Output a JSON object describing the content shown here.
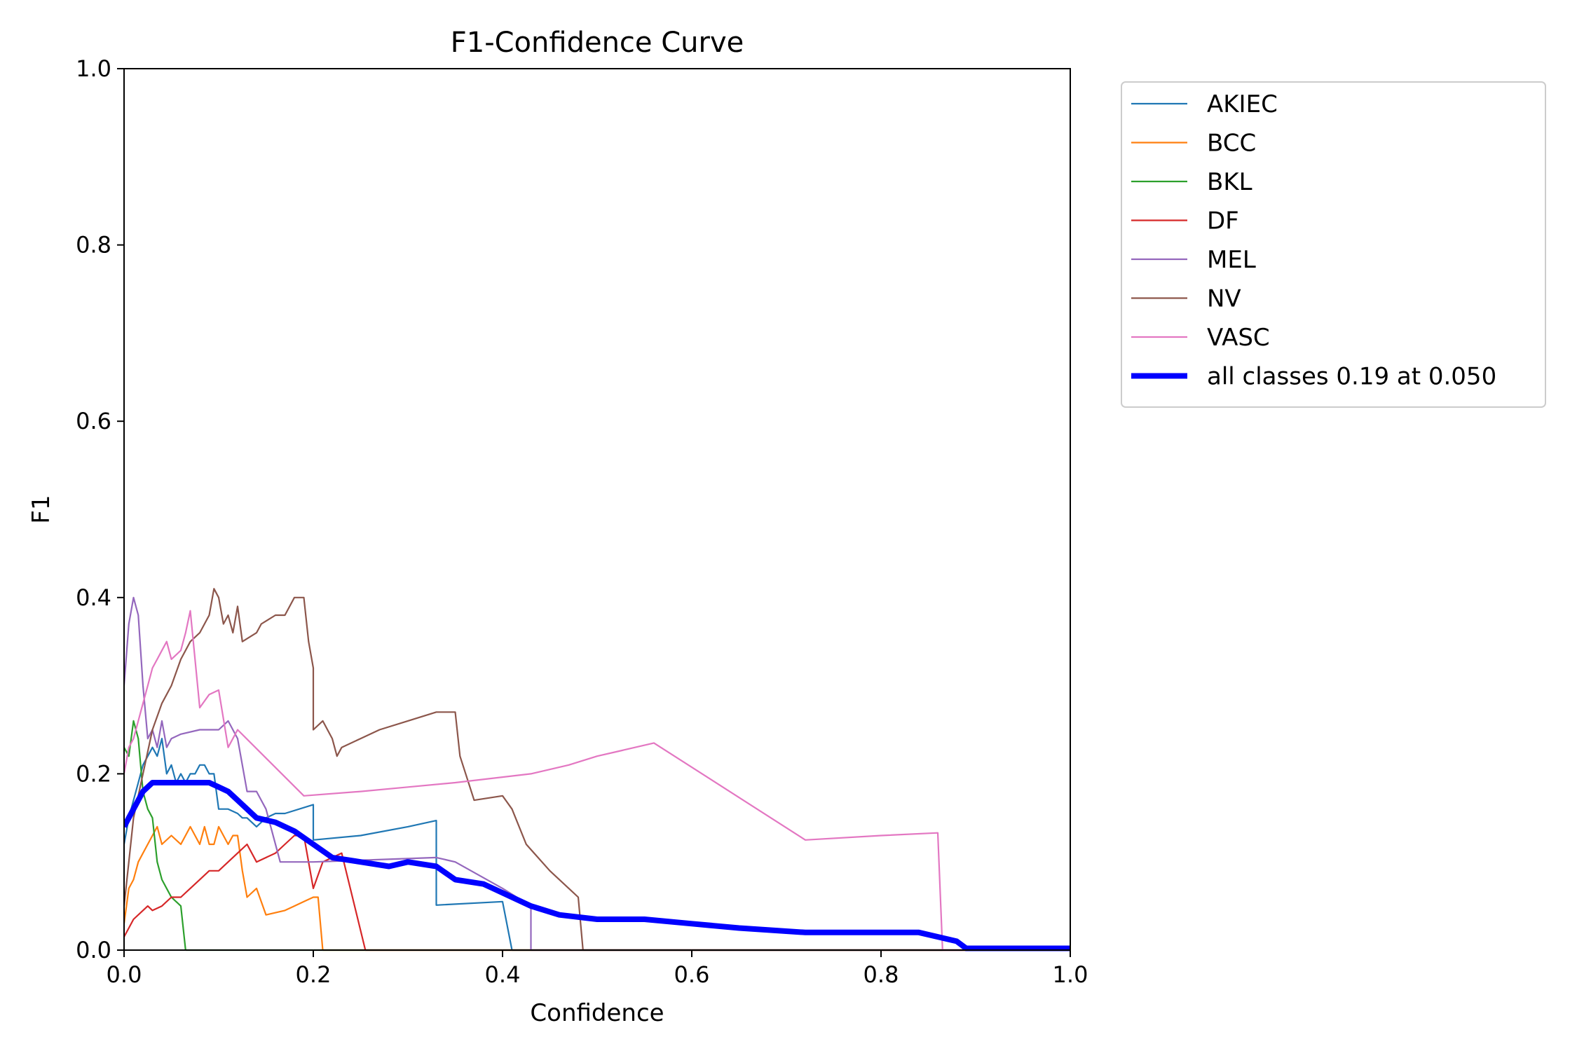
{
  "chart_data": {
    "type": "line",
    "title": "F1-Confidence Curve",
    "xlabel": "Confidence",
    "ylabel": "F1",
    "xlim": [
      0.0,
      1.0
    ],
    "ylim": [
      0.0,
      1.0
    ],
    "xticks": [
      "0.0",
      "0.2",
      "0.4",
      "0.6",
      "0.8",
      "1.0"
    ],
    "yticks": [
      "0.0",
      "0.2",
      "0.4",
      "0.6",
      "0.8",
      "1.0"
    ],
    "grid": false,
    "legend_position": "outside-top-right",
    "series": [
      {
        "name": "AKIEC",
        "color": "#1f77b4",
        "points": [
          [
            0.0,
            0.12
          ],
          [
            0.005,
            0.15
          ],
          [
            0.01,
            0.17
          ],
          [
            0.015,
            0.19
          ],
          [
            0.02,
            0.21
          ],
          [
            0.025,
            0.22
          ],
          [
            0.03,
            0.23
          ],
          [
            0.035,
            0.22
          ],
          [
            0.04,
            0.24
          ],
          [
            0.045,
            0.2
          ],
          [
            0.05,
            0.21
          ],
          [
            0.055,
            0.19
          ],
          [
            0.06,
            0.2
          ],
          [
            0.065,
            0.19
          ],
          [
            0.07,
            0.2
          ],
          [
            0.075,
            0.2
          ],
          [
            0.08,
            0.21
          ],
          [
            0.085,
            0.21
          ],
          [
            0.09,
            0.2
          ],
          [
            0.095,
            0.2
          ],
          [
            0.1,
            0.16
          ],
          [
            0.11,
            0.16
          ],
          [
            0.12,
            0.155
          ],
          [
            0.125,
            0.15
          ],
          [
            0.13,
            0.15
          ],
          [
            0.14,
            0.14
          ],
          [
            0.15,
            0.15
          ],
          [
            0.16,
            0.155
          ],
          [
            0.17,
            0.155
          ],
          [
            0.2,
            0.165
          ],
          [
            0.2,
            0.125
          ],
          [
            0.25,
            0.13
          ],
          [
            0.3,
            0.14
          ],
          [
            0.33,
            0.147
          ],
          [
            0.33,
            0.051
          ],
          [
            0.4,
            0.055
          ],
          [
            0.41,
            0.0
          ],
          [
            1.0,
            0.0
          ]
        ]
      },
      {
        "name": "BCC",
        "color": "#ff7f0e",
        "points": [
          [
            0.0,
            0.03
          ],
          [
            0.005,
            0.07
          ],
          [
            0.01,
            0.08
          ],
          [
            0.015,
            0.1
          ],
          [
            0.02,
            0.11
          ],
          [
            0.03,
            0.13
          ],
          [
            0.035,
            0.14
          ],
          [
            0.04,
            0.12
          ],
          [
            0.05,
            0.13
          ],
          [
            0.06,
            0.12
          ],
          [
            0.07,
            0.14
          ],
          [
            0.08,
            0.12
          ],
          [
            0.085,
            0.14
          ],
          [
            0.09,
            0.12
          ],
          [
            0.095,
            0.12
          ],
          [
            0.1,
            0.14
          ],
          [
            0.11,
            0.12
          ],
          [
            0.115,
            0.13
          ],
          [
            0.12,
            0.13
          ],
          [
            0.125,
            0.09
          ],
          [
            0.13,
            0.06
          ],
          [
            0.14,
            0.07
          ],
          [
            0.15,
            0.04
          ],
          [
            0.17,
            0.045
          ],
          [
            0.18,
            0.05
          ],
          [
            0.19,
            0.055
          ],
          [
            0.2,
            0.06
          ],
          [
            0.205,
            0.06
          ],
          [
            0.21,
            0.0
          ],
          [
            1.0,
            0.0
          ]
        ]
      },
      {
        "name": "BKL",
        "color": "#2ca02c",
        "points": [
          [
            0.0,
            0.23
          ],
          [
            0.005,
            0.22
          ],
          [
            0.01,
            0.26
          ],
          [
            0.015,
            0.24
          ],
          [
            0.02,
            0.18
          ],
          [
            0.025,
            0.16
          ],
          [
            0.03,
            0.15
          ],
          [
            0.035,
            0.1
          ],
          [
            0.04,
            0.08
          ],
          [
            0.05,
            0.06
          ],
          [
            0.06,
            0.05
          ],
          [
            0.065,
            0.0
          ],
          [
            1.0,
            0.0
          ]
        ]
      },
      {
        "name": "DF",
        "color": "#d62728",
        "points": [
          [
            0.0,
            0.015
          ],
          [
            0.005,
            0.025
          ],
          [
            0.01,
            0.035
          ],
          [
            0.02,
            0.045
          ],
          [
            0.025,
            0.05
          ],
          [
            0.03,
            0.045
          ],
          [
            0.04,
            0.05
          ],
          [
            0.05,
            0.06
          ],
          [
            0.06,
            0.06
          ],
          [
            0.07,
            0.07
          ],
          [
            0.08,
            0.08
          ],
          [
            0.09,
            0.09
          ],
          [
            0.1,
            0.09
          ],
          [
            0.11,
            0.1
          ],
          [
            0.12,
            0.11
          ],
          [
            0.13,
            0.12
          ],
          [
            0.14,
            0.1
          ],
          [
            0.16,
            0.11
          ],
          [
            0.17,
            0.12
          ],
          [
            0.18,
            0.13
          ],
          [
            0.19,
            0.13
          ],
          [
            0.2,
            0.07
          ],
          [
            0.21,
            0.1
          ],
          [
            0.22,
            0.105
          ],
          [
            0.23,
            0.11
          ],
          [
            0.255,
            0.0
          ],
          [
            1.0,
            0.0
          ]
        ]
      },
      {
        "name": "MEL",
        "color": "#9467bd",
        "points": [
          [
            0.0,
            0.3
          ],
          [
            0.005,
            0.37
          ],
          [
            0.01,
            0.4
          ],
          [
            0.015,
            0.38
          ],
          [
            0.02,
            0.3
          ],
          [
            0.025,
            0.24
          ],
          [
            0.03,
            0.25
          ],
          [
            0.035,
            0.23
          ],
          [
            0.04,
            0.26
          ],
          [
            0.045,
            0.23
          ],
          [
            0.05,
            0.24
          ],
          [
            0.06,
            0.245
          ],
          [
            0.08,
            0.25
          ],
          [
            0.1,
            0.25
          ],
          [
            0.11,
            0.26
          ],
          [
            0.12,
            0.24
          ],
          [
            0.13,
            0.18
          ],
          [
            0.14,
            0.18
          ],
          [
            0.15,
            0.16
          ],
          [
            0.165,
            0.1
          ],
          [
            0.2,
            0.1
          ],
          [
            0.33,
            0.105
          ],
          [
            0.35,
            0.1
          ],
          [
            0.4,
            0.07
          ],
          [
            0.43,
            0.05
          ],
          [
            0.43,
            0.0
          ],
          [
            1.0,
            0.0
          ]
        ]
      },
      {
        "name": "NV",
        "color": "#8c564b",
        "points": [
          [
            0.0,
            0.05
          ],
          [
            0.005,
            0.1
          ],
          [
            0.01,
            0.15
          ],
          [
            0.02,
            0.2
          ],
          [
            0.03,
            0.25
          ],
          [
            0.04,
            0.28
          ],
          [
            0.05,
            0.3
          ],
          [
            0.06,
            0.33
          ],
          [
            0.07,
            0.35
          ],
          [
            0.08,
            0.36
          ],
          [
            0.09,
            0.38
          ],
          [
            0.095,
            0.41
          ],
          [
            0.1,
            0.4
          ],
          [
            0.105,
            0.37
          ],
          [
            0.11,
            0.38
          ],
          [
            0.115,
            0.36
          ],
          [
            0.12,
            0.39
          ],
          [
            0.125,
            0.35
          ],
          [
            0.14,
            0.36
          ],
          [
            0.145,
            0.37
          ],
          [
            0.16,
            0.38
          ],
          [
            0.17,
            0.38
          ],
          [
            0.18,
            0.4
          ],
          [
            0.19,
            0.4
          ],
          [
            0.195,
            0.35
          ],
          [
            0.2,
            0.32
          ],
          [
            0.2,
            0.25
          ],
          [
            0.21,
            0.26
          ],
          [
            0.22,
            0.24
          ],
          [
            0.225,
            0.22
          ],
          [
            0.23,
            0.23
          ],
          [
            0.25,
            0.24
          ],
          [
            0.27,
            0.25
          ],
          [
            0.3,
            0.26
          ],
          [
            0.33,
            0.27
          ],
          [
            0.35,
            0.27
          ],
          [
            0.355,
            0.22
          ],
          [
            0.37,
            0.17
          ],
          [
            0.4,
            0.175
          ],
          [
            0.41,
            0.16
          ],
          [
            0.425,
            0.12
          ],
          [
            0.45,
            0.09
          ],
          [
            0.48,
            0.06
          ],
          [
            0.485,
            0.0
          ],
          [
            1.0,
            0.0
          ]
        ]
      },
      {
        "name": "VASC",
        "color": "#e377c2",
        "points": [
          [
            0.0,
            0.2
          ],
          [
            0.005,
            0.23
          ],
          [
            0.01,
            0.24
          ],
          [
            0.015,
            0.26
          ],
          [
            0.02,
            0.28
          ],
          [
            0.025,
            0.3
          ],
          [
            0.03,
            0.32
          ],
          [
            0.035,
            0.33
          ],
          [
            0.04,
            0.34
          ],
          [
            0.045,
            0.35
          ],
          [
            0.05,
            0.33
          ],
          [
            0.06,
            0.34
          ],
          [
            0.065,
            0.36
          ],
          [
            0.07,
            0.385
          ],
          [
            0.08,
            0.275
          ],
          [
            0.09,
            0.29
          ],
          [
            0.1,
            0.295
          ],
          [
            0.11,
            0.23
          ],
          [
            0.12,
            0.25
          ],
          [
            0.19,
            0.175
          ],
          [
            0.25,
            0.18
          ],
          [
            0.3,
            0.185
          ],
          [
            0.35,
            0.19
          ],
          [
            0.43,
            0.2
          ],
          [
            0.47,
            0.21
          ],
          [
            0.5,
            0.22
          ],
          [
            0.52,
            0.225
          ],
          [
            0.56,
            0.235
          ],
          [
            0.72,
            0.125
          ],
          [
            0.8,
            0.13
          ],
          [
            0.86,
            0.133
          ],
          [
            0.865,
            0.0
          ],
          [
            1.0,
            0.0
          ]
        ]
      },
      {
        "name": "all classes 0.19 at 0.050",
        "color": "#0000ff",
        "bold": true,
        "points": [
          [
            0.0,
            0.14
          ],
          [
            0.01,
            0.16
          ],
          [
            0.02,
            0.18
          ],
          [
            0.03,
            0.19
          ],
          [
            0.05,
            0.19
          ],
          [
            0.07,
            0.19
          ],
          [
            0.09,
            0.19
          ],
          [
            0.1,
            0.185
          ],
          [
            0.11,
            0.18
          ],
          [
            0.12,
            0.17
          ],
          [
            0.13,
            0.16
          ],
          [
            0.14,
            0.15
          ],
          [
            0.16,
            0.145
          ],
          [
            0.18,
            0.135
          ],
          [
            0.2,
            0.12
          ],
          [
            0.22,
            0.105
          ],
          [
            0.25,
            0.1
          ],
          [
            0.28,
            0.095
          ],
          [
            0.3,
            0.1
          ],
          [
            0.33,
            0.095
          ],
          [
            0.35,
            0.08
          ],
          [
            0.38,
            0.075
          ],
          [
            0.4,
            0.065
          ],
          [
            0.43,
            0.05
          ],
          [
            0.46,
            0.04
          ],
          [
            0.5,
            0.035
          ],
          [
            0.55,
            0.035
          ],
          [
            0.6,
            0.03
          ],
          [
            0.65,
            0.025
          ],
          [
            0.72,
            0.02
          ],
          [
            0.8,
            0.02
          ],
          [
            0.84,
            0.02
          ],
          [
            0.88,
            0.01
          ],
          [
            0.89,
            0.002
          ],
          [
            1.0,
            0.002
          ]
        ]
      }
    ]
  }
}
